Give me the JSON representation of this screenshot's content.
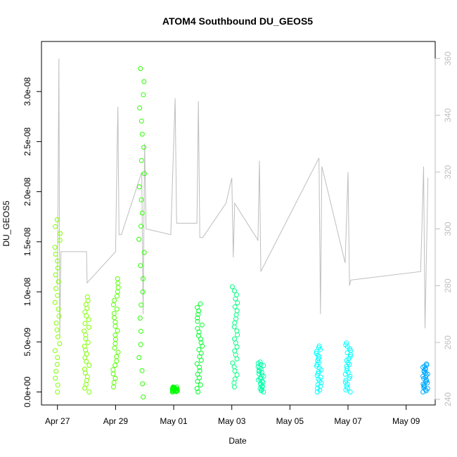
{
  "chart_data": {
    "type": "scatter",
    "title": "ATOM4 Southbound DU_GEOS5",
    "xlabel": "Date",
    "ylabel": "DU_GEOS5",
    "x_tick_labels": [
      "Apr 27",
      "Apr 29",
      "May 01",
      "May 03",
      "May 05",
      "May 07",
      "May 09"
    ],
    "x_tick_days": [
      0,
      2,
      4,
      6,
      8,
      10,
      12
    ],
    "xlim_days": [
      -0.55,
      13.0
    ],
    "y_tick_labels": [
      "0.0e+00",
      "5.0e-09",
      "1.0e-08",
      "1.5e-08",
      "2.0e-08",
      "2.5e-08",
      "3.0e-08"
    ],
    "y_ticks": [
      0,
      5e-09,
      1e-08,
      1.5e-08,
      2e-08,
      2.5e-08,
      3e-08
    ],
    "ylim": [
      -1.3e-09,
      3.5e-08
    ],
    "y2_tick_labels": [
      "240",
      "260",
      "280",
      "300",
      "320",
      "340",
      "360"
    ],
    "y2_ticks": [
      240,
      260,
      280,
      300,
      320,
      340,
      360
    ],
    "y2lim": [
      238,
      366
    ],
    "y2_series_color": "#bebebe",
    "marker": "open-circle",
    "grid": false,
    "legend": "none",
    "flights": [
      {
        "day": 0.0,
        "min": 0.0,
        "max": 1.72e-08,
        "color": "#80ff00"
      },
      {
        "day": 1.0,
        "min": 0.0,
        "max": 9.5e-09,
        "color": "#80ff00"
      },
      {
        "day": 2.0,
        "min": 5e-10,
        "max": 1.13e-08,
        "color": "#55ff00"
      },
      {
        "day": 2.9,
        "min": -5e-10,
        "max": 3.23e-08,
        "color": "#2bff00"
      },
      {
        "day": 4.05,
        "min": 0.0,
        "max": 5e-10,
        "color": "#00ff00"
      },
      {
        "day": 4.9,
        "min": 0.0,
        "max": 8.8e-09,
        "color": "#00ff2b"
      },
      {
        "day": 6.1,
        "min": 5e-10,
        "max": 1.05e-08,
        "color": "#00ff80"
      },
      {
        "day": 7.0,
        "min": 0.0,
        "max": 3e-09,
        "color": "#00ffaa"
      },
      {
        "day": 9.0,
        "min": 0.0,
        "max": 4.6e-09,
        "color": "#00ffff"
      },
      {
        "day": 10.0,
        "min": 0.0,
        "max": 4.9e-09,
        "color": "#00ffff"
      },
      {
        "day": 12.65,
        "min": 0.0,
        "max": 2.8e-09,
        "color": "#00aaff"
      }
    ],
    "gray_trace": [
      [
        0.0,
        280
      ],
      [
        0.05,
        360
      ],
      [
        0.08,
        262
      ],
      [
        0.12,
        292
      ],
      [
        1.0,
        292
      ],
      [
        1.02,
        281
      ],
      [
        2.0,
        292
      ],
      [
        2.05,
        327
      ],
      [
        2.08,
        343
      ],
      [
        2.12,
        298
      ],
      [
        2.2,
        298
      ],
      [
        2.9,
        320
      ],
      [
        2.95,
        270
      ],
      [
        3.0,
        330
      ],
      [
        3.05,
        300
      ],
      [
        3.9,
        298
      ],
      [
        4.05,
        346
      ],
      [
        4.1,
        302
      ],
      [
        4.8,
        302
      ],
      [
        4.85,
        345
      ],
      [
        4.9,
        297
      ],
      [
        5.0,
        297
      ],
      [
        5.8,
        309
      ],
      [
        6.0,
        318
      ],
      [
        6.05,
        290
      ],
      [
        6.1,
        309
      ],
      [
        6.9,
        296
      ],
      [
        6.95,
        324
      ],
      [
        7.0,
        285
      ],
      [
        9.0,
        325
      ],
      [
        9.05,
        270
      ],
      [
        9.1,
        322
      ],
      [
        9.9,
        288
      ],
      [
        10.0,
        320
      ],
      [
        10.05,
        280
      ],
      [
        10.1,
        282
      ],
      [
        12.5,
        285
      ],
      [
        12.6,
        322
      ],
      [
        12.65,
        265
      ],
      [
        12.75,
        318
      ]
    ]
  }
}
